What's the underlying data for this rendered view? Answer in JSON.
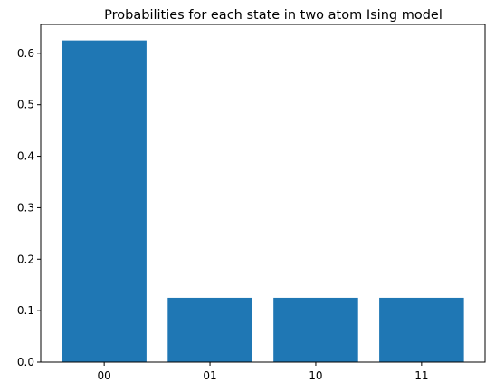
{
  "chart_data": {
    "type": "bar",
    "title": "Probabilities for each state in two atom Ising model",
    "xlabel": "",
    "ylabel": "",
    "categories": [
      "00",
      "01",
      "10",
      "11"
    ],
    "values": [
      0.625,
      0.125,
      0.125,
      0.125
    ],
    "ylim": [
      0,
      0.656
    ],
    "yticks": [
      0.0,
      0.1,
      0.2,
      0.3,
      0.4,
      0.5,
      0.6
    ],
    "ytick_labels": [
      "0.0",
      "0.1",
      "0.2",
      "0.3",
      "0.4",
      "0.5",
      "0.6"
    ],
    "bar_color": "#1f77b4",
    "grid": false,
    "legend": "none"
  }
}
